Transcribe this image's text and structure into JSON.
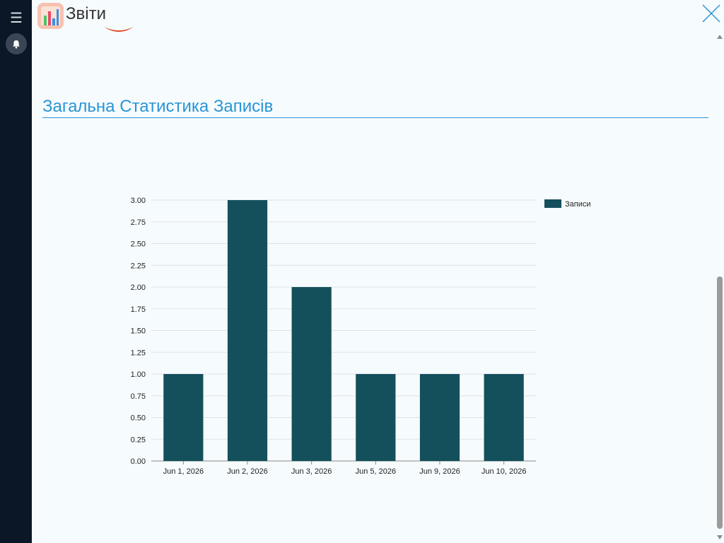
{
  "header": {
    "title": "Звіти",
    "app_icon": "bar-chart-report-icon"
  },
  "sidebar": {
    "menu_icon": "hamburger-menu-icon",
    "bell_icon": "bell-icon"
  },
  "section": {
    "title": "Загальна Статистика Записів"
  },
  "colors": {
    "accent": "#2a95d6",
    "bar": "#144f5c",
    "sidebar_bg": "#0b1626",
    "page_bg": "#f6fbfd",
    "partial_shape": "#e0451f"
  },
  "chart_data": {
    "type": "bar",
    "categories": [
      "Jun 1, 2026",
      "Jun 2, 2026",
      "Jun 3, 2026",
      "Jun 5, 2026",
      "Jun 9, 2026",
      "Jun 10, 2026"
    ],
    "series": [
      {
        "name": "Записи",
        "values": [
          1,
          3,
          2,
          1,
          1,
          1
        ]
      }
    ],
    "ylim": [
      0,
      3
    ],
    "yticks": [
      "0.00",
      "0.25",
      "0.50",
      "0.75",
      "1.00",
      "1.25",
      "1.50",
      "1.75",
      "2.00",
      "2.25",
      "2.50",
      "2.75",
      "3.00"
    ],
    "grid": true,
    "legend": "top-right"
  }
}
